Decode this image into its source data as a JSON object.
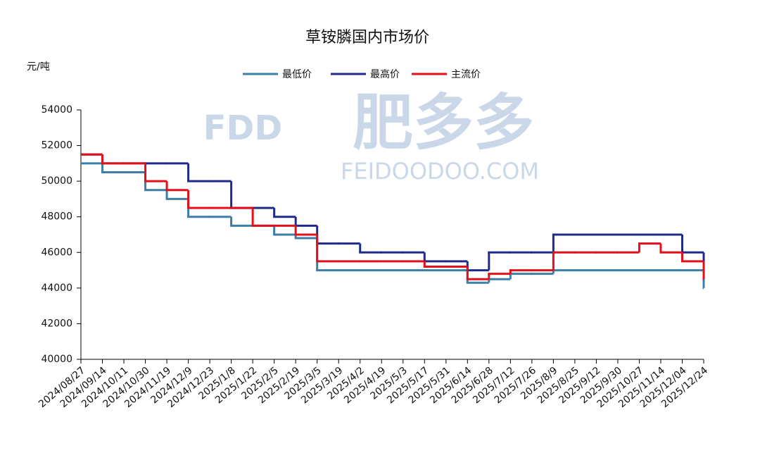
{
  "chart_data": {
    "type": "line",
    "step": true,
    "title": "草铵膦国内市场价",
    "y_label": "元/吨",
    "watermark": {
      "logo": "FDD",
      "brand": "肥多多",
      "site": "FEIDOODOO.COM"
    },
    "categories": [
      "2024/08/27",
      "2024/09/14",
      "2024/10/11",
      "2024/10/30",
      "2024/11/19",
      "2024/12/9",
      "2024/12/23",
      "2025/1/8",
      "2025/1/22",
      "2025/2/5",
      "2025/2/19",
      "2025/3/5",
      "2025/3/19",
      "2025/4/2",
      "2025/4/19",
      "2025/5/3",
      "2025/5/17",
      "2025/5/31",
      "2025/6/14",
      "2025/6/28",
      "2025/7/12",
      "2025/7/26",
      "2025/8/9",
      "2025/8/25",
      "2025/9/12",
      "2025/9/30",
      "2025/10/27",
      "2025/11/14",
      "2025/12/04",
      "2025/12/24"
    ],
    "series": [
      {
        "name": "最低价",
        "color": "#3b7fa8",
        "values": [
          51000,
          50500,
          50500,
          49500,
          49000,
          48000,
          48000,
          47500,
          47500,
          47000,
          46800,
          45000,
          45000,
          45000,
          45000,
          45000,
          45000,
          45000,
          44300,
          44500,
          44800,
          44800,
          45000,
          45000,
          45000,
          45000,
          45000,
          45000,
          45000,
          44000
        ]
      },
      {
        "name": "最高价",
        "color": "#1f2a8c",
        "values": [
          51500,
          51000,
          51000,
          51000,
          51000,
          50000,
          50000,
          48500,
          48500,
          48000,
          47500,
          46500,
          46500,
          46000,
          46000,
          46000,
          45500,
          45500,
          45000,
          46000,
          46000,
          46000,
          47000,
          47000,
          47000,
          47000,
          47000,
          47000,
          46000,
          45000
        ]
      },
      {
        "name": "主流价",
        "color": "#e3101b",
        "values": [
          51500,
          51000,
          51000,
          50000,
          49500,
          48500,
          48500,
          48500,
          47500,
          47500,
          47000,
          45500,
          45500,
          45500,
          45500,
          45500,
          45200,
          45200,
          44500,
          44800,
          45000,
          45000,
          46000,
          46000,
          46000,
          46000,
          46500,
          46000,
          45500,
          44500
        ]
      }
    ],
    "ylim": [
      40000,
      54000
    ],
    "yticks": [
      40000,
      42000,
      44000,
      46000,
      48000,
      50000,
      52000,
      54000
    ],
    "legend": "top"
  }
}
